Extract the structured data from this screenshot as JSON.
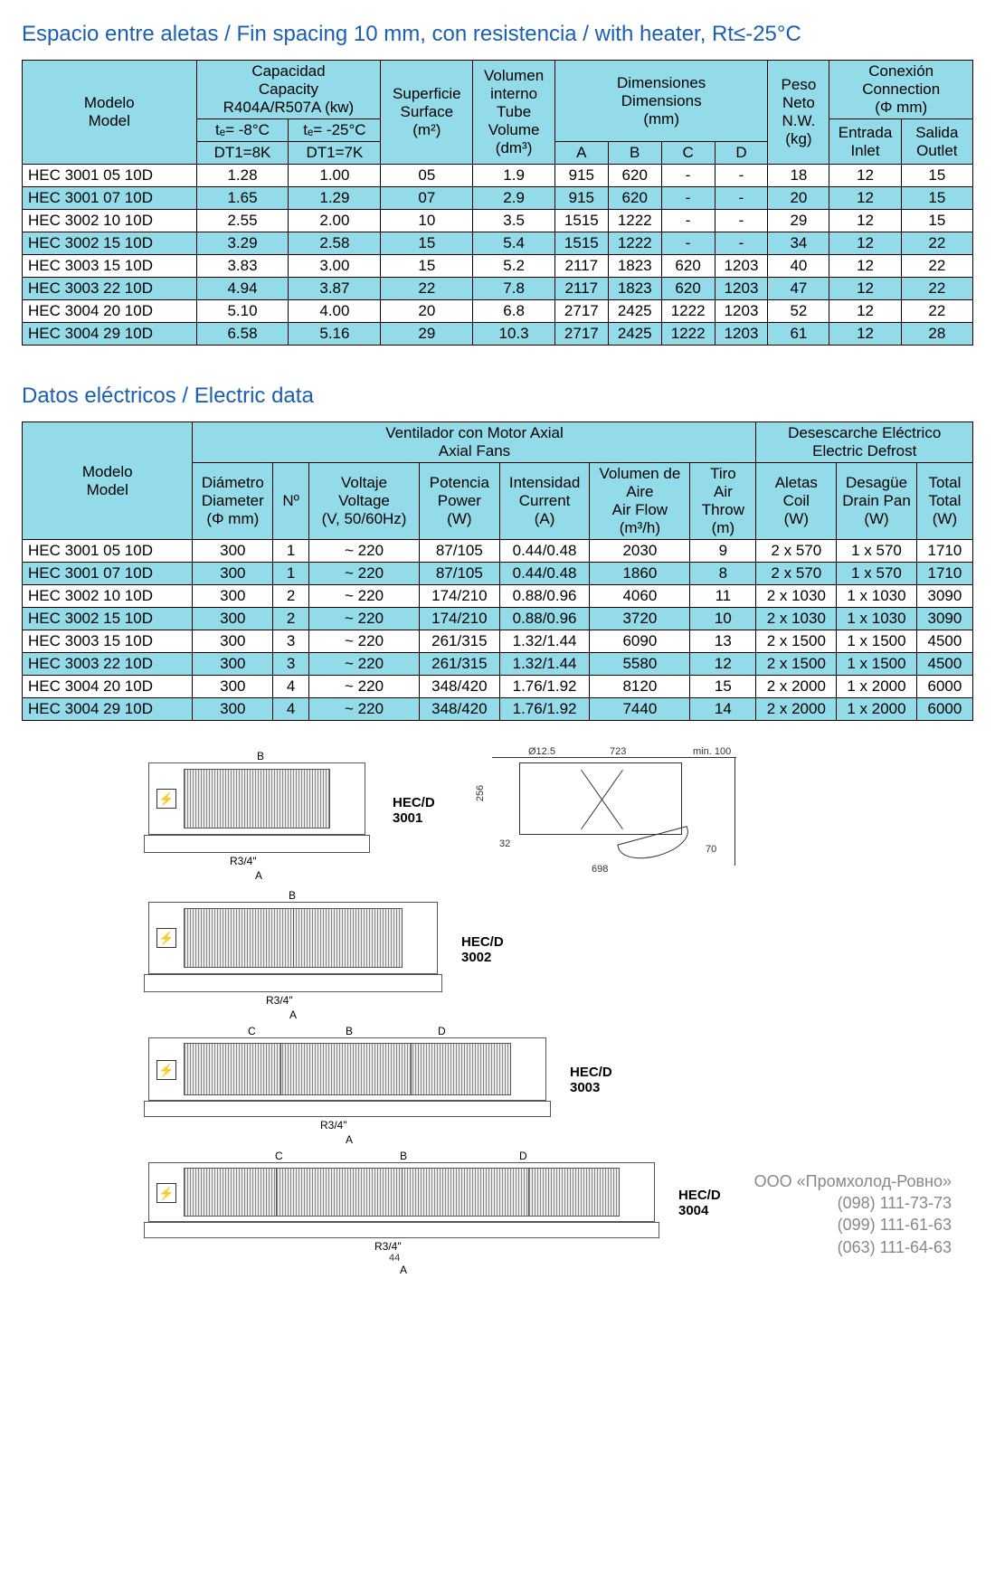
{
  "title1": "Espacio entre aletas / Fin spacing 10 mm, con resistencia / with heater, Rt≤-25°C",
  "title2": "Datos eléctricos / Electric data",
  "table1": {
    "hdr": {
      "model1": "Modelo",
      "model2": "Model",
      "cap1": "Capacidad",
      "cap2": "Capacity",
      "cap3": "R404A/R507A (kw)",
      "te8": "tₑ= -8°C",
      "te25": "tₑ= -25°C",
      "dt8": "DT1=8K",
      "dt7": "DT1=7K",
      "surf1": "Superficie",
      "surf2": "Surface",
      "surf3": "(m²)",
      "vol1": "Volumen",
      "vol2": "interno",
      "vol3": "Tube",
      "vol4": "Volume",
      "vol5": "(dm³)",
      "dim1": "Dimensiones",
      "dim2": "Dimensions",
      "dim3": "(mm)",
      "A": "A",
      "B": "B",
      "C": "C",
      "D": "D",
      "peso1": "Peso",
      "peso2": "Neto",
      "peso3": "N.W.",
      "peso4": "(kg)",
      "con1": "Conexión",
      "con2": "Connection",
      "con3": "(Φ mm)",
      "in1": "Entrada",
      "in2": "Inlet",
      "out1": "Salida",
      "out2": "Outlet"
    },
    "rows": [
      {
        "m": "HEC 3001 05 10D",
        "c1": "1.28",
        "c2": "1.00",
        "s": "05",
        "v": "1.9",
        "a": "915",
        "b": "620",
        "c": "-",
        "d": "-",
        "p": "18",
        "i": "12",
        "o": "15"
      },
      {
        "m": "HEC 3001 07 10D",
        "c1": "1.65",
        "c2": "1.29",
        "s": "07",
        "v": "2.9",
        "a": "915",
        "b": "620",
        "c": "-",
        "d": "-",
        "p": "20",
        "i": "12",
        "o": "15"
      },
      {
        "m": "HEC 3002 10 10D",
        "c1": "2.55",
        "c2": "2.00",
        "s": "10",
        "v": "3.5",
        "a": "1515",
        "b": "1222",
        "c": "-",
        "d": "-",
        "p": "29",
        "i": "12",
        "o": "15"
      },
      {
        "m": "HEC 3002 15 10D",
        "c1": "3.29",
        "c2": "2.58",
        "s": "15",
        "v": "5.4",
        "a": "1515",
        "b": "1222",
        "c": "-",
        "d": "-",
        "p": "34",
        "i": "12",
        "o": "22"
      },
      {
        "m": "HEC 3003 15 10D",
        "c1": "3.83",
        "c2": "3.00",
        "s": "15",
        "v": "5.2",
        "a": "2117",
        "b": "1823",
        "c": "620",
        "d": "1203",
        "p": "40",
        "i": "12",
        "o": "22"
      },
      {
        "m": "HEC 3003 22 10D",
        "c1": "4.94",
        "c2": "3.87",
        "s": "22",
        "v": "7.8",
        "a": "2117",
        "b": "1823",
        "c": "620",
        "d": "1203",
        "p": "47",
        "i": "12",
        "o": "22"
      },
      {
        "m": "HEC 3004 20 10D",
        "c1": "5.10",
        "c2": "4.00",
        "s": "20",
        "v": "6.8",
        "a": "2717",
        "b": "2425",
        "c": "1222",
        "d": "1203",
        "p": "52",
        "i": "12",
        "o": "22"
      },
      {
        "m": "HEC 3004 29 10D",
        "c1": "6.58",
        "c2": "5.16",
        "s": "29",
        "v": "10.3",
        "a": "2717",
        "b": "2425",
        "c": "1222",
        "d": "1203",
        "p": "61",
        "i": "12",
        "o": "28"
      }
    ]
  },
  "table2": {
    "hdr": {
      "model1": "Modelo",
      "model2": "Model",
      "fans1": "Ventilador con Motor Axial",
      "fans2": "Axial Fans",
      "def1": "Desescarche Eléctrico",
      "def2": "Electric Defrost",
      "dia1": "Diámetro",
      "dia2": "Diameter",
      "dia3": "(Φ mm)",
      "n": "Nº",
      "volt1": "Voltaje",
      "volt2": "Voltage",
      "volt3": "(V, 50/60Hz)",
      "pow1": "Potencia",
      "pow2": "Power",
      "pow3": "(W)",
      "cur1": "Intensidad",
      "cur2": "Current",
      "cur3": "(A)",
      "flow1": "Volumen de",
      "flow2": "Aire",
      "flow3": "Air Flow",
      "flow4": "(m³/h)",
      "throw1": "Tiro",
      "throw2": "Air",
      "throw3": "Throw",
      "throw4": "(m)",
      "coil1": "Aletas",
      "coil2": "Coil",
      "coil3": "(W)",
      "pan1": "Desagüe",
      "pan2": "Drain Pan",
      "pan3": "(W)",
      "tot1": "Total",
      "tot2": "Total",
      "tot3": "(W)"
    },
    "rows": [
      {
        "m": "HEC 3001 05 10D",
        "d": "300",
        "n": "1",
        "v": "~ 220",
        "p": "87/105",
        "i": "0.44/0.48",
        "f": "2030",
        "t": "9",
        "c": "2 x 570",
        "dp": "1 x 570",
        "tt": "1710"
      },
      {
        "m": "HEC 3001 07 10D",
        "d": "300",
        "n": "1",
        "v": "~ 220",
        "p": "87/105",
        "i": "0.44/0.48",
        "f": "1860",
        "t": "8",
        "c": "2 x 570",
        "dp": "1 x 570",
        "tt": "1710"
      },
      {
        "m": "HEC 3002 10 10D",
        "d": "300",
        "n": "2",
        "v": "~ 220",
        "p": "174/210",
        "i": "0.88/0.96",
        "f": "4060",
        "t": "11",
        "c": "2 x 1030",
        "dp": "1 x 1030",
        "tt": "3090"
      },
      {
        "m": "HEC 3002 15 10D",
        "d": "300",
        "n": "2",
        "v": "~ 220",
        "p": "174/210",
        "i": "0.88/0.96",
        "f": "3720",
        "t": "10",
        "c": "2 x 1030",
        "dp": "1 x 1030",
        "tt": "3090"
      },
      {
        "m": "HEC 3003 15 10D",
        "d": "300",
        "n": "3",
        "v": "~ 220",
        "p": "261/315",
        "i": "1.32/1.44",
        "f": "6090",
        "t": "13",
        "c": "2 x 1500",
        "dp": "1 x 1500",
        "tt": "4500"
      },
      {
        "m": "HEC 3003 22 10D",
        "d": "300",
        "n": "3",
        "v": "~ 220",
        "p": "261/315",
        "i": "1.32/1.44",
        "f": "5580",
        "t": "12",
        "c": "2 x 1500",
        "dp": "1 x 1500",
        "tt": "4500"
      },
      {
        "m": "HEC 3004 20 10D",
        "d": "300",
        "n": "4",
        "v": "~ 220",
        "p": "348/420",
        "i": "1.76/1.92",
        "f": "8120",
        "t": "15",
        "c": "2 x 2000",
        "dp": "1 x 2000",
        "tt": "6000"
      },
      {
        "m": "HEC 3004 29 10D",
        "d": "300",
        "n": "4",
        "v": "~ 220",
        "p": "348/420",
        "i": "1.76/1.92",
        "f": "7440",
        "t": "14",
        "c": "2 x 2000",
        "dp": "1 x 2000",
        "tt": "6000"
      }
    ]
  },
  "drawings": {
    "l1": "HEC/D 3001",
    "l2": "HEC/D 3002",
    "l3": "HEC/D 3003",
    "l4": "HEC/D 3004",
    "B": "B",
    "A": "A",
    "C": "C",
    "D": "D",
    "r34": "R3/4\"",
    "d1": "Ø12.5",
    "d2": "723",
    "d3": "min. 100",
    "d4": "256",
    "d5": "32",
    "d6": "698",
    "d7": "70",
    "d8": "44"
  },
  "footer": {
    "company": "ООО «Промхолод-Ровно»",
    "p1": "(098) 111-73-73",
    "p2": "(099) 111-61-63",
    "p3": "(063) 111-64-63"
  }
}
